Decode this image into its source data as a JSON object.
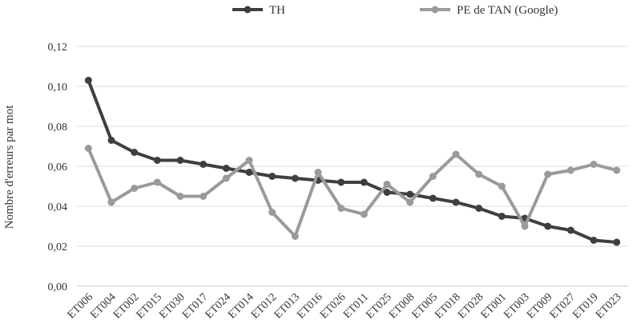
{
  "chart_data": {
    "type": "line",
    "title": "",
    "xlabel": "",
    "ylabel": "Nombre d'erreurs par mot",
    "ylim": [
      0,
      0.12
    ],
    "yticks": [
      "0,00",
      "0,02",
      "0,04",
      "0,06",
      "0,08",
      "0,10",
      "0,12"
    ],
    "grid": true,
    "legend_position": "top-center",
    "categories": [
      "ET006",
      "ET004",
      "ET002",
      "ET015",
      "ET030",
      "ET017",
      "ET024",
      "ET014",
      "ET012",
      "ET013",
      "ET016",
      "ET026",
      "ET011",
      "ET025",
      "ET008",
      "ET005",
      "ET018",
      "ET028",
      "ET001",
      "ET003",
      "ET009",
      "ET027",
      "ET019",
      "ET023"
    ],
    "series": [
      {
        "name": "TH",
        "color": "#3f3f3f",
        "values": [
          0.103,
          0.073,
          0.067,
          0.063,
          0.063,
          0.061,
          0.059,
          0.057,
          0.055,
          0.054,
          0.053,
          0.052,
          0.052,
          0.047,
          0.046,
          0.044,
          0.042,
          0.039,
          0.035,
          0.034,
          0.03,
          0.028,
          0.023,
          0.022
        ]
      },
      {
        "name": "PE de TAN (Google)",
        "color": "#9a9a9a",
        "values": [
          0.069,
          0.042,
          0.049,
          0.052,
          0.045,
          0.045,
          0.054,
          0.063,
          0.037,
          0.025,
          0.057,
          0.039,
          0.036,
          0.051,
          0.042,
          0.055,
          0.066,
          0.056,
          0.05,
          0.03,
          0.056,
          0.058,
          0.061,
          0.058
        ]
      }
    ]
  }
}
